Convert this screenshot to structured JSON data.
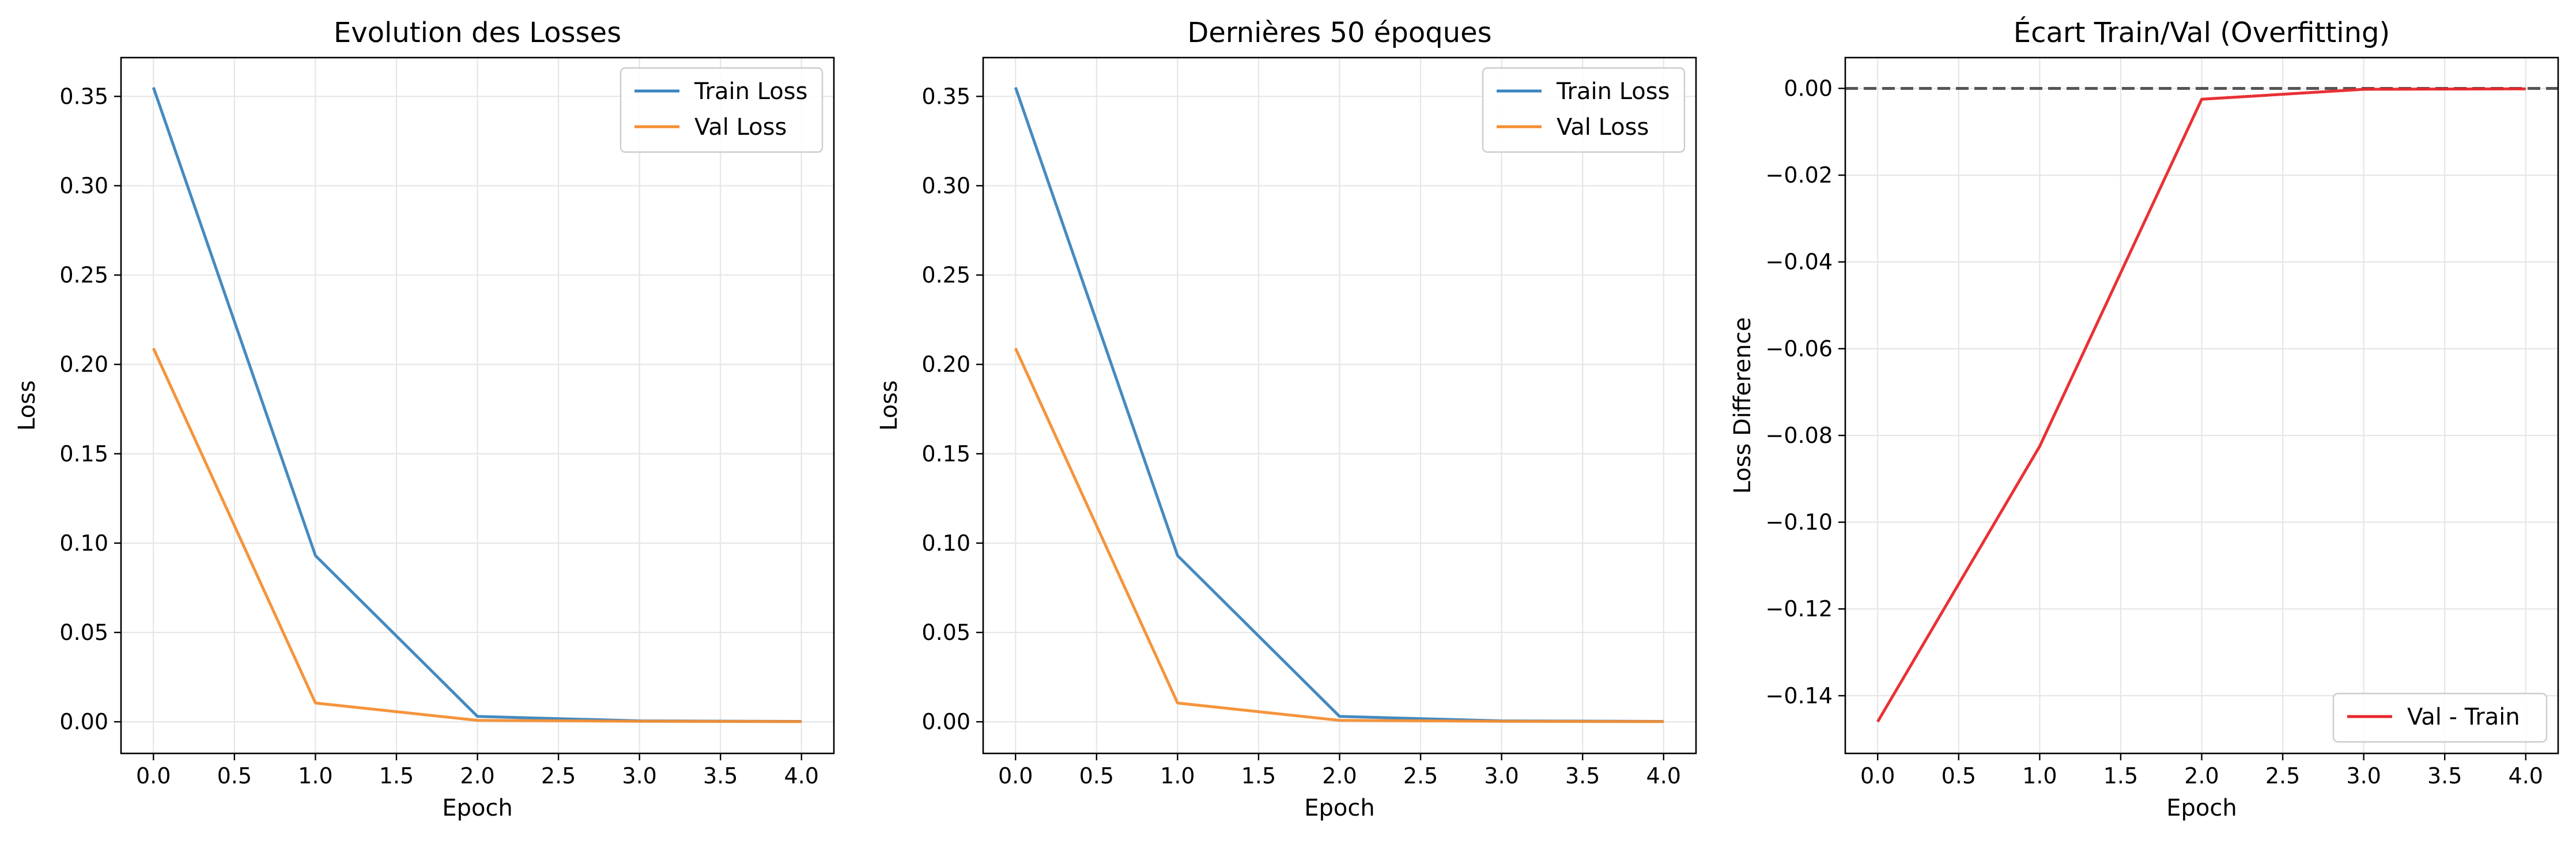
{
  "chart_data": [
    {
      "type": "line",
      "title": "Evolution des Losses",
      "xlabel": "Epoch",
      "ylabel": "Loss",
      "xlim": [
        -0.2,
        4.2
      ],
      "ylim": [
        -0.0177,
        0.3717
      ],
      "xticks": [
        0.0,
        0.5,
        1.0,
        1.5,
        2.0,
        2.5,
        3.0,
        3.5,
        4.0
      ],
      "xtick_labels": [
        "0.0",
        "0.5",
        "1.0",
        "1.5",
        "2.0",
        "2.5",
        "3.0",
        "3.5",
        "4.0"
      ],
      "yticks": [
        0.0,
        0.05,
        0.1,
        0.15,
        0.2,
        0.25,
        0.3,
        0.35
      ],
      "ytick_labels": [
        "0.00",
        "0.05",
        "0.10",
        "0.15",
        "0.20",
        "0.25",
        "0.30",
        "0.35"
      ],
      "grid": true,
      "legend_position": "upper-right",
      "x": [
        0,
        1,
        2,
        3,
        4
      ],
      "series": [
        {
          "name": "Train Loss",
          "color": "#3b84bd",
          "values": [
            0.355,
            0.093,
            0.003,
            0.0005,
            0.0002
          ]
        },
        {
          "name": "Val Loss",
          "color": "#f48e33",
          "values": [
            0.209,
            0.0105,
            0.0008,
            0.0003,
            0.0001
          ]
        }
      ]
    },
    {
      "type": "line",
      "title": "Dernières 50 époques",
      "xlabel": "Epoch",
      "ylabel": "Loss",
      "xlim": [
        -0.2,
        4.2
      ],
      "ylim": [
        -0.0177,
        0.3717
      ],
      "xticks": [
        0.0,
        0.5,
        1.0,
        1.5,
        2.0,
        2.5,
        3.0,
        3.5,
        4.0
      ],
      "xtick_labels": [
        "0.0",
        "0.5",
        "1.0",
        "1.5",
        "2.0",
        "2.5",
        "3.0",
        "3.5",
        "4.0"
      ],
      "yticks": [
        0.0,
        0.05,
        0.1,
        0.15,
        0.2,
        0.25,
        0.3,
        0.35
      ],
      "ytick_labels": [
        "0.00",
        "0.05",
        "0.10",
        "0.15",
        "0.20",
        "0.25",
        "0.30",
        "0.35"
      ],
      "grid": true,
      "legend_position": "upper-right",
      "x": [
        0,
        1,
        2,
        3,
        4
      ],
      "series": [
        {
          "name": "Train Loss",
          "color": "#3b84bd",
          "values": [
            0.355,
            0.093,
            0.003,
            0.0005,
            0.0002
          ]
        },
        {
          "name": "Val Loss",
          "color": "#f48e33",
          "values": [
            0.209,
            0.0105,
            0.0008,
            0.0003,
            0.0001
          ]
        }
      ]
    },
    {
      "type": "line",
      "title": "Écart Train/Val (Overfitting)",
      "xlabel": "Epoch",
      "ylabel": "Loss Difference",
      "xlim": [
        -0.2,
        4.2
      ],
      "ylim": [
        -0.1533,
        0.0071
      ],
      "xticks": [
        0.0,
        0.5,
        1.0,
        1.5,
        2.0,
        2.5,
        3.0,
        3.5,
        4.0
      ],
      "xtick_labels": [
        "0.0",
        "0.5",
        "1.0",
        "1.5",
        "2.0",
        "2.5",
        "3.0",
        "3.5",
        "4.0"
      ],
      "yticks": [
        0.0,
        -0.02,
        -0.04,
        -0.06,
        -0.08,
        -0.1,
        -0.12,
        -0.14
      ],
      "ytick_labels": [
        "0.00",
        "−0.02",
        "−0.04",
        "−0.06",
        "−0.08",
        "−0.10",
        "−0.12",
        "−0.14"
      ],
      "grid": true,
      "legend_position": "lower-right",
      "reference_line": {
        "y": 0,
        "color": "#555555",
        "style": "dashed"
      },
      "x": [
        0,
        1,
        2,
        3,
        4
      ],
      "series": [
        {
          "name": "Val - Train",
          "color": "#e8262a",
          "values": [
            -0.146,
            -0.0825,
            -0.0025,
            -0.0002,
            -0.0001
          ]
        }
      ]
    }
  ]
}
